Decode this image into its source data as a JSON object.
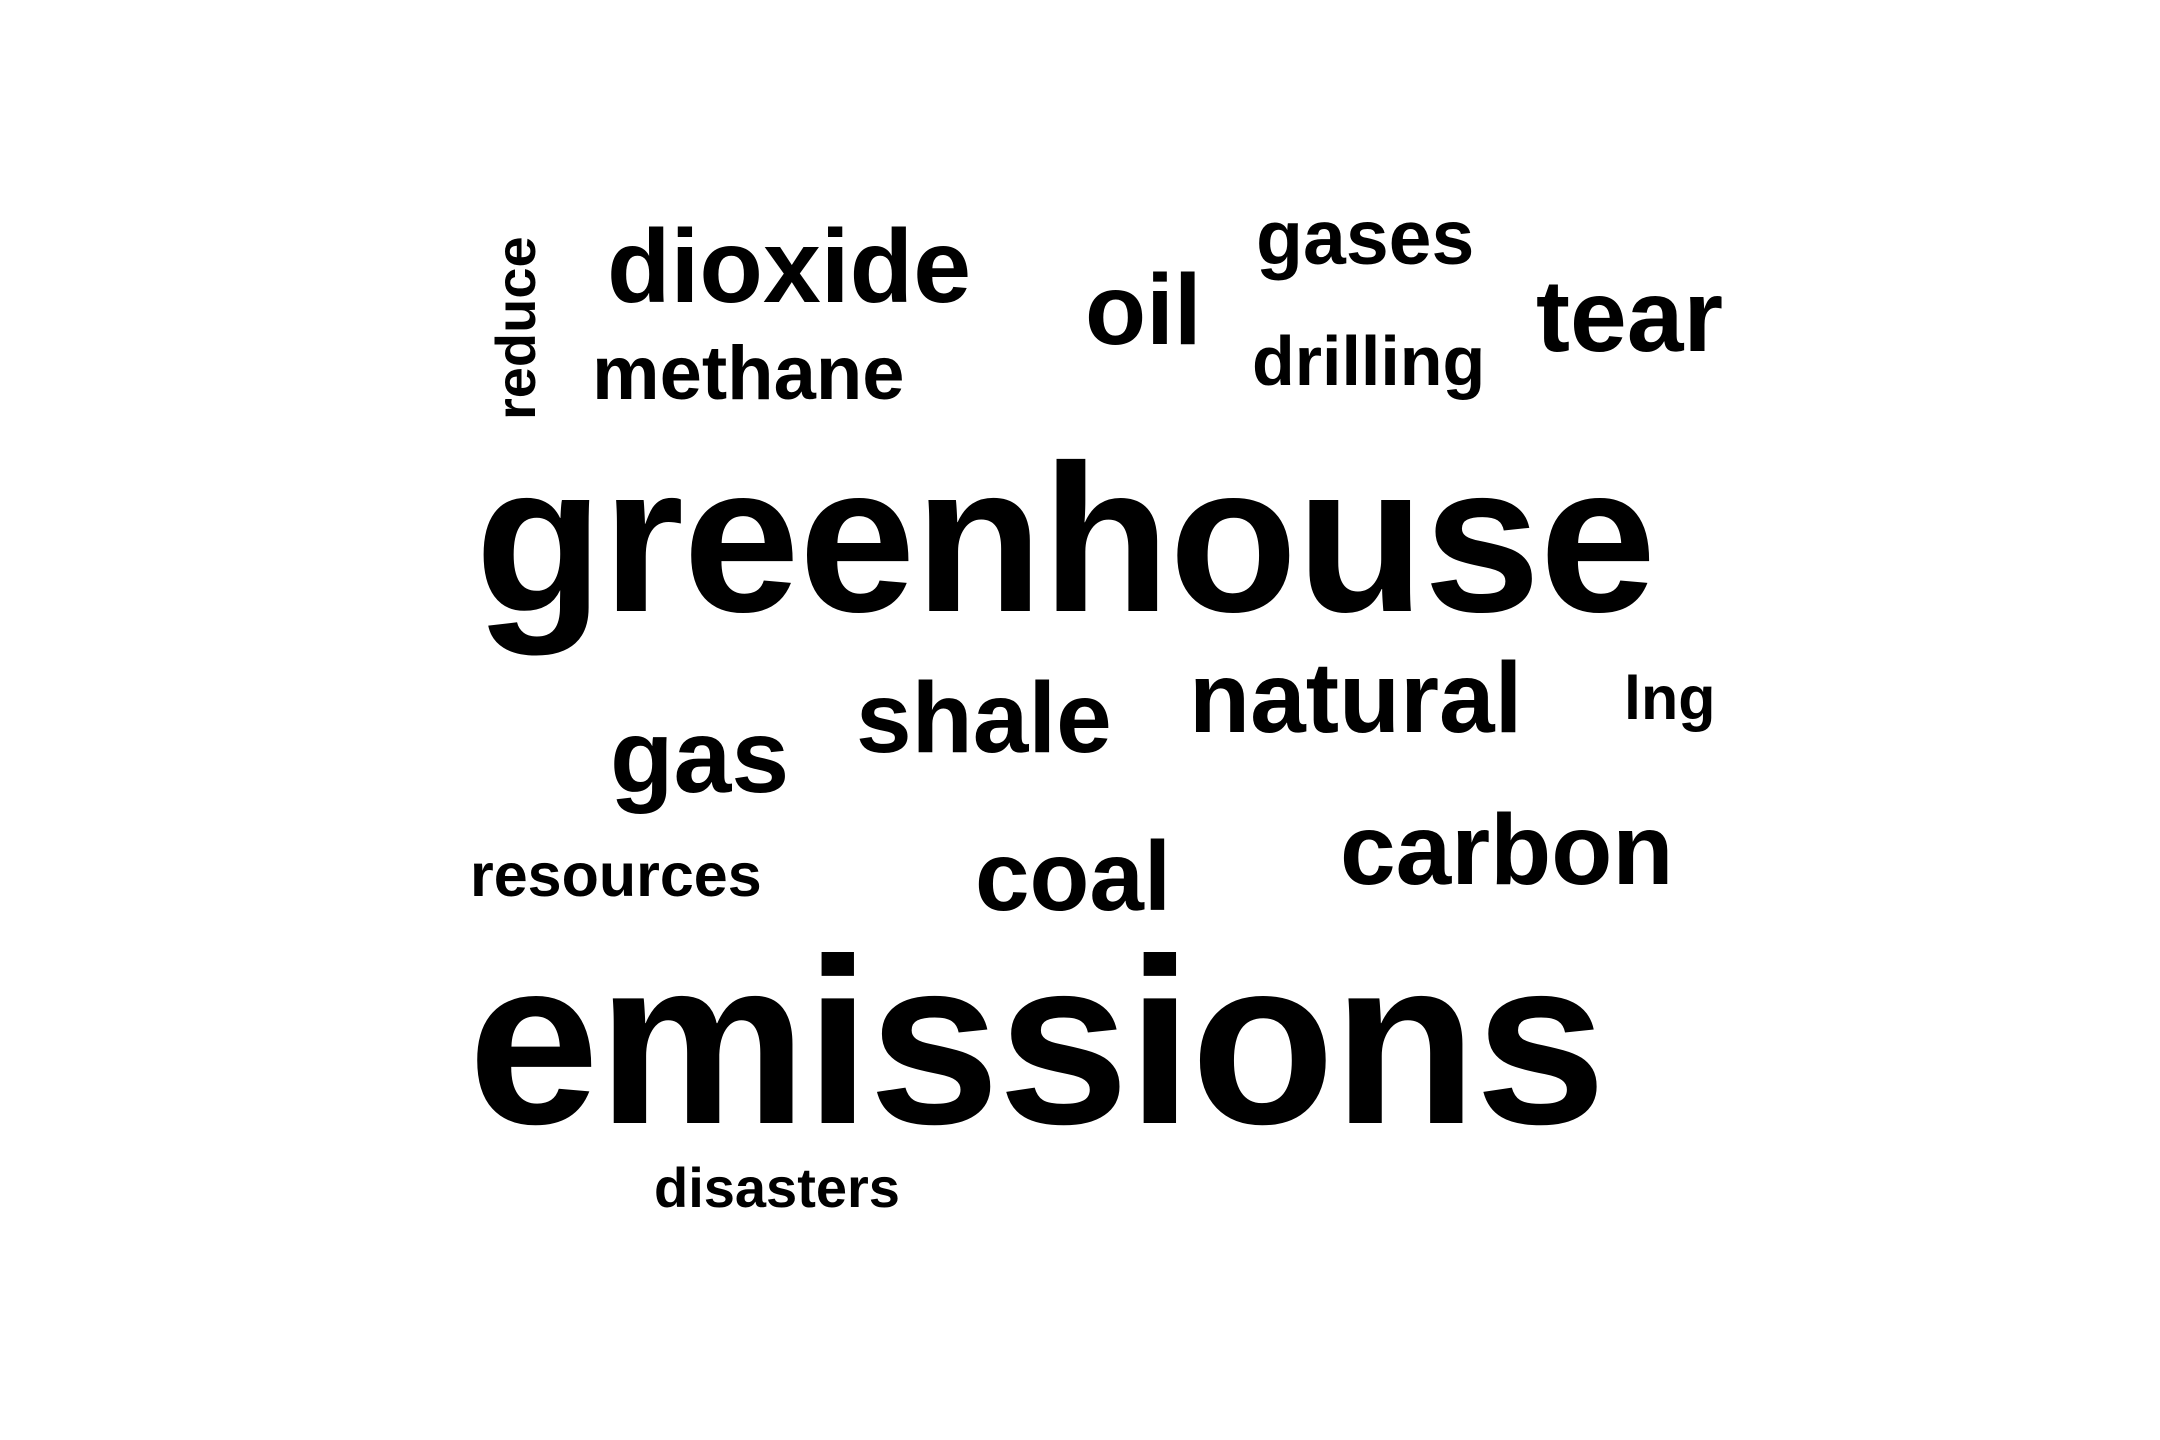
{
  "word_cloud": {
    "words": {
      "emissions": "emissions",
      "greenhouse": "greenhouse",
      "dioxide": "dioxide",
      "oil": "oil",
      "gases": "gases",
      "tear": "tear",
      "drilling": "drilling",
      "methane": "methane",
      "reduce": "reduce",
      "gas": "gas",
      "shale": "shale",
      "natural": "natural",
      "lng": "lng",
      "resources": "resources",
      "coal": "coal",
      "carbon": "carbon",
      "disasters": "disasters"
    },
    "text_color": "#000000",
    "background_color": "#ffffff"
  }
}
